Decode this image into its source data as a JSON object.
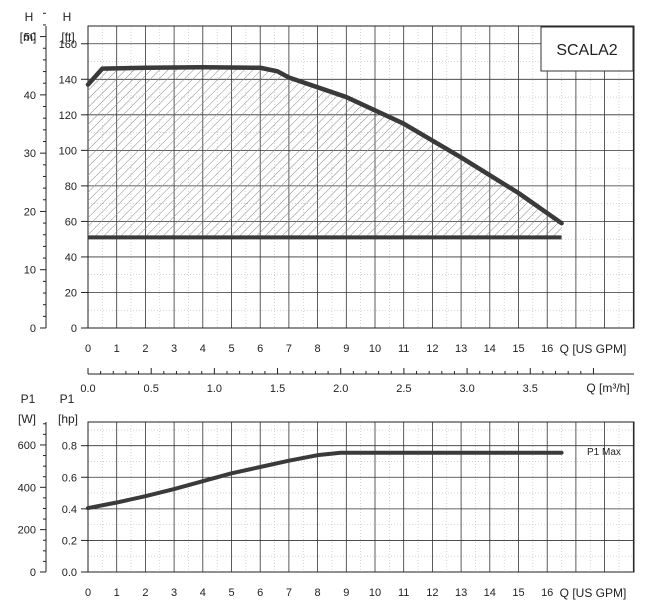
{
  "colors": {
    "curve": "#3a3a3a",
    "grid": "#333333",
    "minor": "#bbbbbb",
    "hatch": "#888888"
  },
  "chart_data": [
    {
      "type": "line",
      "label": "SCALA2",
      "x_top_label": "",
      "y_left": {
        "symbol": "H",
        "unit": "[m]",
        "ticks": [
          "0",
          "10",
          "20",
          "30",
          "40",
          "50"
        ]
      },
      "y_right": {
        "symbol": "H",
        "unit": "[ft]",
        "ticks": [
          "0",
          "20",
          "40",
          "60",
          "80",
          "100",
          "120",
          "140",
          "160"
        ],
        "ylim": [
          0,
          170
        ]
      },
      "x": {
        "label": "Q [US GPM]",
        "tick_last": "16",
        "label_text": "Q [US GPM]",
        "ticks": [
          "0",
          "1",
          "2",
          "3",
          "4",
          "5",
          "6",
          "7",
          "8",
          "9",
          "10",
          "11",
          "12",
          "13",
          "14",
          "15",
          "16"
        ],
        "xlim": [
          0,
          19
        ]
      },
      "series": [
        {
          "x": [
            0,
            0.5,
            2,
            4,
            6,
            6.6,
            7,
            9,
            11,
            13,
            15,
            16.5
          ],
          "y": [
            137,
            146,
            146.5,
            146.8,
            146.5,
            144.5,
            141,
            130,
            115,
            96,
            76,
            59
          ],
          "style": "max"
        },
        {
          "x": [
            0,
            16.5
          ],
          "y": [
            51,
            51
          ],
          "style": "min"
        }
      ],
      "grid": true
    },
    {
      "type": "line",
      "x_top": {
        "label": "Q [m³/h]",
        "ticks": [
          "0.0",
          "0.5",
          "1.0",
          "1.5",
          "2.0",
          "2.5",
          "3.0",
          "3.5"
        ]
      },
      "y_left": {
        "symbol": "P1",
        "unit": "[W]",
        "ticks": [
          "0",
          "200",
          "400",
          "600"
        ]
      },
      "y_right": {
        "symbol": "P1",
        "unit": "[hp]",
        "ticks": [
          "0.0",
          "0.2",
          "0.4",
          "0.6",
          "0.8"
        ],
        "ylim": [
          0,
          0.95
        ]
      },
      "x": {
        "label": "Q [US GPM]",
        "ticks": [
          "0",
          "1",
          "2",
          "3",
          "4",
          "5",
          "6",
          "7",
          "8",
          "9",
          "10",
          "11",
          "12",
          "13",
          "14",
          "15",
          "16"
        ],
        "xlim": [
          0,
          19
        ]
      },
      "series": [
        {
          "name": "P1 Max",
          "x": [
            0,
            1,
            2,
            3,
            4,
            5,
            6,
            7,
            8,
            8.8,
            16.5
          ],
          "y": [
            0.405,
            0.44,
            0.48,
            0.525,
            0.575,
            0.625,
            0.665,
            0.705,
            0.74,
            0.755,
            0.755
          ]
        }
      ],
      "grid": true
    }
  ]
}
